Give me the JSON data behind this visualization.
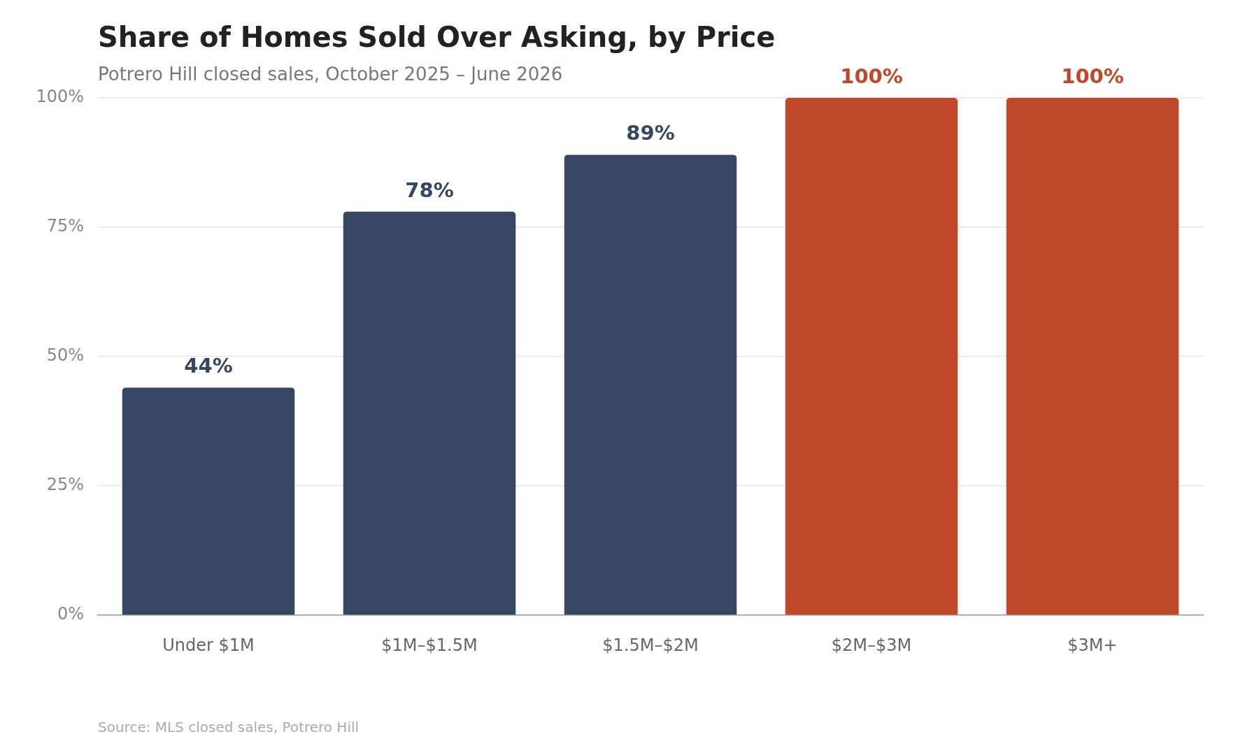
{
  "chart_data": {
    "type": "bar",
    "title": "Share of Homes Sold Over Asking, by Price",
    "subtitle": "Potrero Hill closed sales, October 2025 – June 2026",
    "categories": [
      "Under $1M",
      "$1M–$1.5M",
      "$1.5M–$2M",
      "$2M–$3M",
      "$3M+"
    ],
    "values": [
      44,
      78,
      89,
      100,
      100
    ],
    "colors": [
      "#364763",
      "#364763",
      "#364763",
      "#bf472a",
      "#bf472a"
    ],
    "value_labels": [
      "44%",
      "78%",
      "89%",
      "100%",
      "100%"
    ],
    "ylim": [
      0,
      100
    ],
    "yticks": [
      {
        "value": 0,
        "label": "0%"
      },
      {
        "value": 25,
        "label": "25%"
      },
      {
        "value": 50,
        "label": "50%"
      },
      {
        "value": 75,
        "label": "75%"
      },
      {
        "value": 100,
        "label": "100%"
      }
    ],
    "grid": "y",
    "legend": false,
    "annotations": [
      "Source: MLS closed sales, Potrero Hill"
    ]
  }
}
